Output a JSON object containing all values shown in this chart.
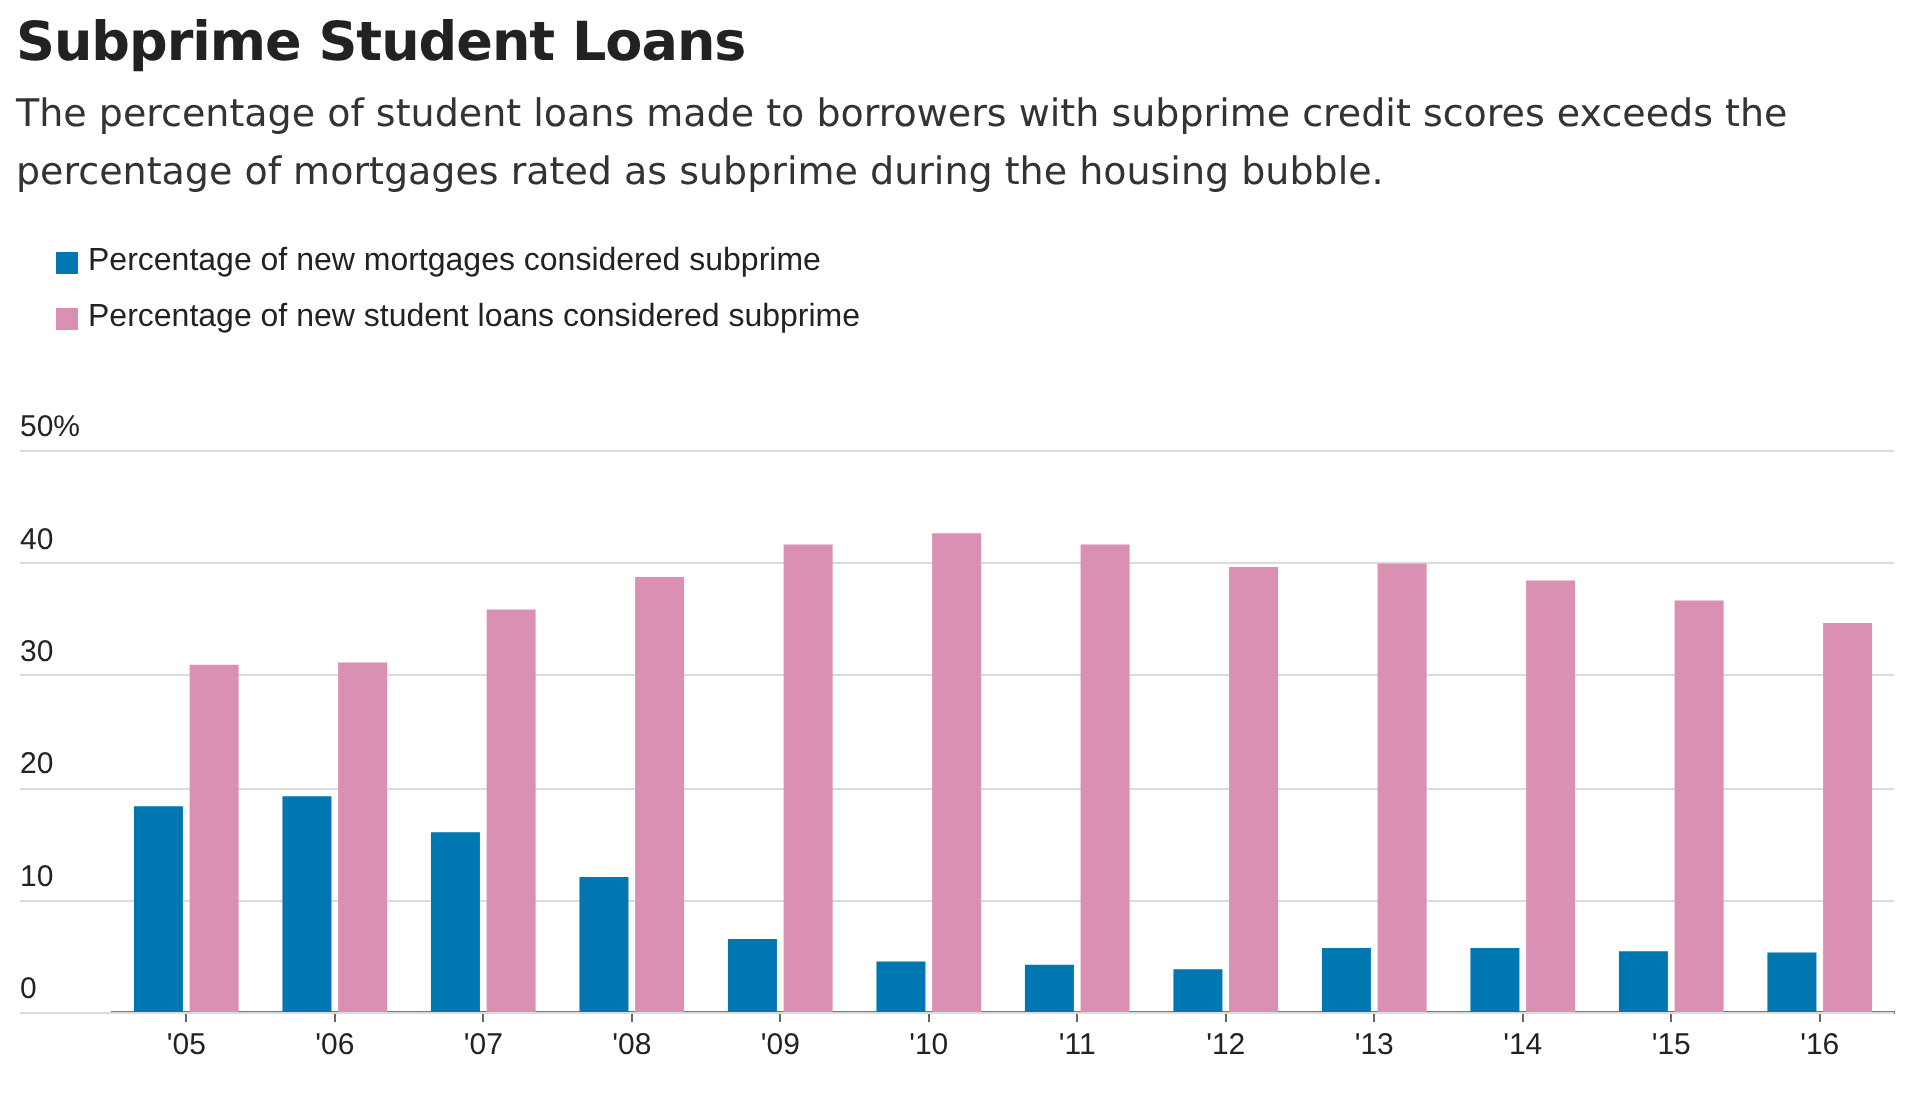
{
  "chart_data": {
    "type": "bar",
    "title": "Subprime Student Loans",
    "subtitle": "The percentage of student loans made to borrowers with subprime credit scores exceeds the percentage of mortgages rated as subprime during the housing bubble.",
    "categories": [
      "'05",
      "'06",
      "'07",
      "'08",
      "'09",
      "'10",
      "'11",
      "'12",
      "'13",
      "'14",
      "'15",
      "'16"
    ],
    "series": [
      {
        "name": "Percentage of new mortgages considered subprime",
        "color": "#0077b0",
        "values": [
          18.3,
          19.2,
          16.0,
          12.0,
          6.5,
          4.5,
          4.2,
          3.8,
          5.7,
          5.7,
          5.4,
          5.3
        ]
      },
      {
        "name": "Percentage of new student loans considered subprime",
        "color": "#d990b2",
        "values": [
          30.9,
          31.1,
          35.8,
          38.7,
          41.6,
          42.6,
          41.6,
          39.6,
          39.9,
          38.4,
          36.6,
          34.6
        ]
      }
    ],
    "ylim": [
      0,
      50
    ],
    "yticks": [
      0,
      10,
      20,
      30,
      40,
      {
        "value": 50,
        "label": "50%"
      }
    ],
    "grid": "y",
    "legend": "top left"
  }
}
